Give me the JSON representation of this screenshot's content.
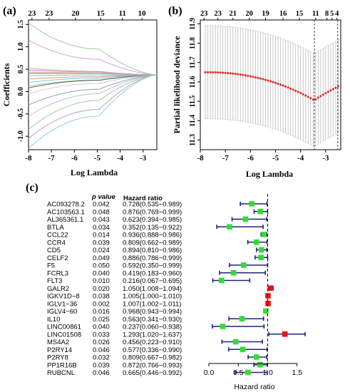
{
  "chart_data": [
    {
      "panel_label": "(a)",
      "type": "line",
      "xlabel": "Log Lambda",
      "ylabel": "Coefficients",
      "xlim": [
        -8.0,
        -2.4
      ],
      "ylim": [
        -1.3,
        1.6
      ],
      "x_ticks": [
        "-8",
        "-7",
        "-6",
        "-5",
        "-4",
        "-3"
      ],
      "y_ticks": [
        "-1.0",
        "-0.5",
        "0.0",
        "0.5",
        "1.0",
        "1.5"
      ],
      "top_ticks": [
        {
          "x": -7.85,
          "label": "23"
        },
        {
          "x": -7.1,
          "label": "23"
        },
        {
          "x": -5.95,
          "label": "20"
        },
        {
          "x": -4.85,
          "label": "15"
        },
        {
          "x": -3.9,
          "label": "11"
        },
        {
          "x": -3.05,
          "label": "10"
        }
      ],
      "paths": [
        {
          "color": "#9ec99e",
          "start": 1.53,
          "mid": 0.95
        },
        {
          "color": "#c8a8d8",
          "start": 1.15,
          "mid": 0.72
        },
        {
          "color": "#e0a0a0",
          "start": 0.52,
          "mid": 0.45
        },
        {
          "color": "#a0a0e0",
          "start": 0.48,
          "mid": 0.44
        },
        {
          "color": "#f0c080",
          "start": 0.44,
          "mid": 0.42
        },
        {
          "color": "#d090c0",
          "start": 0.42,
          "mid": 0.41
        },
        {
          "color": "#80c0c0",
          "start": 0.4,
          "mid": 0.4
        },
        {
          "color": "#b0b0b0",
          "start": 0.35,
          "mid": 0.37
        },
        {
          "color": "#c0a080",
          "start": 0.28,
          "mid": 0.33
        },
        {
          "color": "#90c0e0",
          "start": 0.2,
          "mid": 0.3
        },
        {
          "color": "#a0d0a0",
          "start": 0.12,
          "mid": 0.26
        },
        {
          "color": "#606060",
          "start": 0.08,
          "mid": 0.25
        },
        {
          "color": "#e0c0e0",
          "start": -0.05,
          "mid": 0.18
        },
        {
          "color": "#80a0c0",
          "start": -0.3,
          "mid": 0.05
        },
        {
          "color": "#c0c0c0",
          "start": -0.55,
          "mid": -0.05
        },
        {
          "color": "#a0c8a0",
          "start": -0.85,
          "mid": -0.2
        },
        {
          "color": "#b0a0d0",
          "start": -1.05,
          "mid": -0.4
        },
        {
          "color": "#90d0d0",
          "start": -1.27,
          "mid": -0.55
        }
      ]
    },
    {
      "panel_label": "(b)",
      "type": "scatter",
      "xlabel": "Log Lambda",
      "ylabel": "Partial likelihood deviance",
      "xlim": [
        -8.0,
        -2.4
      ],
      "ylim": [
        11.25,
        11.92
      ],
      "x_ticks": [
        "-8",
        "-7",
        "-6",
        "-5",
        "-4",
        "-3"
      ],
      "y_ticks": [
        "11.3",
        "11.4",
        "11.5",
        "11.6",
        "11.7",
        "11.8",
        "11.9"
      ],
      "top_ticks": [
        {
          "x": -7.85,
          "label": "23"
        },
        {
          "x": -7.3,
          "label": "23"
        },
        {
          "x": -6.7,
          "label": "21"
        },
        {
          "x": -6.05,
          "label": "20"
        },
        {
          "x": -5.4,
          "label": "19"
        },
        {
          "x": -4.7,
          "label": "16"
        },
        {
          "x": -4.05,
          "label": "15"
        },
        {
          "x": -3.4,
          "label": "11"
        },
        {
          "x": -2.95,
          "label": "8"
        },
        {
          "x": -2.75,
          "label": "5"
        },
        {
          "x": -2.55,
          "label": "4"
        }
      ],
      "vlines": [
        -3.45,
        -2.52
      ],
      "curve": {
        "start": -7.8,
        "end": -2.45,
        "step": 0.1,
        "base": 11.65,
        "min_x": -3.45,
        "min_y": 11.505,
        "right_y": 11.58
      },
      "error_half_width": 0.24,
      "point_color": "#dd2222"
    },
    {
      "panel_label": "(c)",
      "type": "forest",
      "xlabel": "Hazard ratio",
      "col_headers": {
        "p": "p value",
        "hr": "Hazard ratio"
      },
      "xlim": [
        0.0,
        1.6
      ],
      "x_ticks": [
        "0.0",
        "0.5",
        "1.0",
        "1.5"
      ],
      "reference": 1.0,
      "rows": [
        {
          "gene": "AC093278.2",
          "p": "0.042",
          "hr_text": "0.728(0.535−0.989)",
          "hr": 0.728,
          "lo": 0.535,
          "hi": 0.989
        },
        {
          "gene": "AC103563.1",
          "p": "0.048",
          "hr_text": "0.876(0.769−0.999)",
          "hr": 0.876,
          "lo": 0.769,
          "hi": 0.999
        },
        {
          "gene": "AL365361.1",
          "p": "0.043",
          "hr_text": "0.623(0.394−0.985)",
          "hr": 0.623,
          "lo": 0.394,
          "hi": 0.985
        },
        {
          "gene": "BTLA",
          "p": "0.034",
          "hr_text": "0.352(0.135−0.922)",
          "hr": 0.352,
          "lo": 0.135,
          "hi": 0.922
        },
        {
          "gene": "CCL22",
          "p": "0.014",
          "hr_text": "0.936(0.888−0.986)",
          "hr": 0.936,
          "lo": 0.888,
          "hi": 0.986
        },
        {
          "gene": "CCR4",
          "p": "0.039",
          "hr_text": "0.809(0.662−0.989)",
          "hr": 0.809,
          "lo": 0.662,
          "hi": 0.989
        },
        {
          "gene": "CD5",
          "p": "0.024",
          "hr_text": "0.894(0.810−0.986)",
          "hr": 0.894,
          "lo": 0.81,
          "hi": 0.986
        },
        {
          "gene": "CELF2",
          "p": "0.049",
          "hr_text": "0.886(0.786−0.999)",
          "hr": 0.886,
          "lo": 0.786,
          "hi": 0.999
        },
        {
          "gene": "F5",
          "p": "0.050",
          "hr_text": "0.592(0.350−0.999)",
          "hr": 0.592,
          "lo": 0.35,
          "hi": 0.999
        },
        {
          "gene": "FCRL3",
          "p": "0.040",
          "hr_text": "0.419(0.183−0.960)",
          "hr": 0.419,
          "lo": 0.183,
          "hi": 0.96
        },
        {
          "gene": "FLT3",
          "p": "0.010",
          "hr_text": "0.216(0.067−0.695)",
          "hr": 0.216,
          "lo": 0.067,
          "hi": 0.695
        },
        {
          "gene": "GALR2",
          "p": "0.020",
          "hr_text": "1.050(1.008−1.094)",
          "hr": 1.05,
          "lo": 1.008,
          "hi": 1.094
        },
        {
          "gene": "IGKV1D−8",
          "p": "0.038",
          "hr_text": "1.005(1.000−1.010)",
          "hr": 1.005,
          "lo": 1.0,
          "hi": 1.01
        },
        {
          "gene": "IGLV1−36",
          "p": "0.002",
          "hr_text": "1.007(1.002−1.011)",
          "hr": 1.007,
          "lo": 1.002,
          "hi": 1.011
        },
        {
          "gene": "IGLV4−60",
          "p": "0.016",
          "hr_text": "0.968(0.943−0.994)",
          "hr": 0.968,
          "lo": 0.943,
          "hi": 0.994
        },
        {
          "gene": "IL10",
          "p": "0.025",
          "hr_text": "0.563(0.341−0.930)",
          "hr": 0.563,
          "lo": 0.341,
          "hi": 0.93
        },
        {
          "gene": "LINC00861",
          "p": "0.040",
          "hr_text": "0.237(0.060−0.938)",
          "hr": 0.237,
          "lo": 0.06,
          "hi": 0.938
        },
        {
          "gene": "LINC01508",
          "p": "0.033",
          "hr_text": "1.293(1.020−1.637)",
          "hr": 1.293,
          "lo": 1.02,
          "hi": 1.637
        },
        {
          "gene": "MS4A2",
          "p": "0.026",
          "hr_text": "0.456(0.223−0.910)",
          "hr": 0.456,
          "lo": 0.223,
          "hi": 0.91
        },
        {
          "gene": "P2RY14",
          "p": "0.046",
          "hr_text": "0.577(0.336−0.990)",
          "hr": 0.577,
          "lo": 0.336,
          "hi": 0.99
        },
        {
          "gene": "P2RY8",
          "p": "0.032",
          "hr_text": "0.809(0.667−0.982)",
          "hr": 0.809,
          "lo": 0.667,
          "hi": 0.982
        },
        {
          "gene": "PP1R16B",
          "p": "0.039",
          "hr_text": "0.872(0.766−0.993)",
          "hr": 0.872,
          "lo": 0.766,
          "hi": 0.993
        },
        {
          "gene": "RUBCNL",
          "p": "0.046",
          "hr_text": "0.665(0.446−0.992)",
          "hr": 0.665,
          "lo": 0.446,
          "hi": 0.992
        }
      ],
      "colors": {
        "protective": "#33dd33",
        "risk": "#ee1111",
        "ci": "#1a237e"
      }
    }
  ]
}
